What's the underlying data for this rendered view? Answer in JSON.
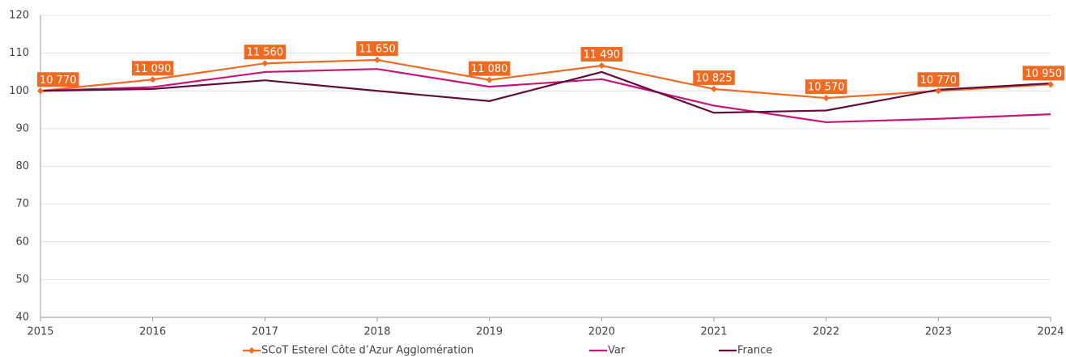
{
  "chart_data": {
    "type": "line",
    "x": [
      "2015",
      "2016",
      "2017",
      "2018",
      "2019",
      "2020",
      "2021",
      "2022",
      "2023",
      "2024"
    ],
    "series": [
      {
        "name": "SCoT Esterel Côte d’Azur Agglomération",
        "color": "#f26a22",
        "marker": "diamond",
        "values": [
          100,
          103.0,
          107.3,
          108.2,
          102.9,
          106.7,
          100.5,
          98.1,
          100,
          101.7
        ],
        "annotations": [
          "10 770",
          "11 090",
          "11 560",
          "11 650",
          "11 080",
          "11 490",
          "10 825",
          "10 570",
          "10 770",
          "10 950"
        ]
      },
      {
        "name": "Var",
        "color": "#c8157d",
        "values": [
          100,
          101,
          105,
          105.8,
          101.1,
          103.1,
          96.1,
          91.7,
          92.6,
          93.8
        ]
      },
      {
        "name": "France",
        "color": "#640d3a",
        "values": [
          100,
          100.5,
          102.8,
          100,
          97.3,
          105,
          94.2,
          94.8,
          100.3,
          102
        ]
      }
    ],
    "ylim": [
      40,
      120
    ],
    "yticks": [
      40,
      50,
      60,
      70,
      80,
      90,
      100,
      110,
      120
    ],
    "grid": true
  }
}
